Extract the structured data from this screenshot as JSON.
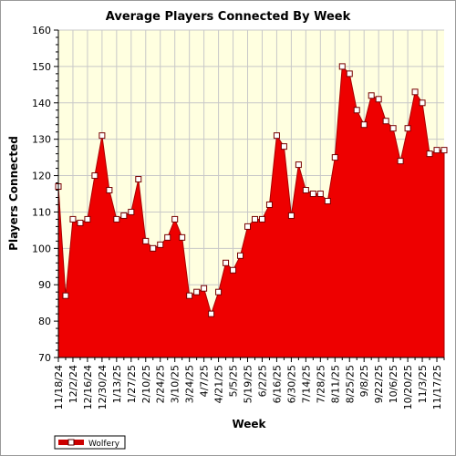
{
  "chart_data": {
    "type": "area",
    "title": "Average Players Connected By Week",
    "xlabel": "Week",
    "ylabel": "Players Connected",
    "ylim": [
      70,
      160
    ],
    "y_ticks": [
      70,
      80,
      90,
      100,
      110,
      120,
      130,
      140,
      150,
      160
    ],
    "grid": true,
    "legend_position": "bottom-left",
    "colors": {
      "area": "#ee0000",
      "plot_background": "#ffffe0",
      "grid": "#c8c8c8"
    },
    "x_tick_labels": [
      "11/18/24",
      "12/2/24",
      "12/16/24",
      "12/30/24",
      "1/13/25",
      "1/27/25",
      "2/10/25",
      "2/24/25",
      "3/10/25",
      "3/24/25",
      "4/7/25",
      "4/21/25",
      "5/5/25",
      "5/19/25",
      "6/2/25",
      "6/16/25",
      "6/30/25",
      "7/14/25",
      "7/28/25",
      "8/11/25",
      "8/25/25",
      "9/8/25",
      "9/22/25",
      "10/6/25",
      "10/20/25",
      "11/3/25",
      "11/17/25"
    ],
    "series": [
      {
        "name": "Wolfery",
        "x": [
          "11/18/24",
          "11/25/24",
          "12/2/24",
          "12/9/24",
          "12/16/24",
          "12/23/24",
          "12/30/24",
          "1/6/25",
          "1/13/25",
          "1/20/25",
          "1/27/25",
          "2/3/25",
          "2/10/25",
          "2/17/25",
          "2/24/25",
          "3/3/25",
          "3/10/25",
          "3/17/25",
          "3/24/25",
          "3/31/25",
          "4/7/25",
          "4/14/25",
          "4/21/25",
          "4/28/25",
          "5/5/25",
          "5/12/25",
          "5/19/25",
          "5/26/25",
          "6/2/25",
          "6/9/25",
          "6/16/25",
          "6/23/25",
          "6/30/25",
          "7/7/25",
          "7/14/25",
          "7/21/25",
          "7/28/25",
          "8/4/25",
          "8/11/25",
          "8/18/25",
          "8/25/25",
          "9/1/25",
          "9/8/25",
          "9/15/25",
          "9/22/25",
          "9/29/25",
          "10/6/25",
          "10/13/25",
          "10/20/25",
          "10/27/25",
          "11/3/25",
          "11/10/25",
          "11/17/25",
          "11/24/25"
        ],
        "values": [
          117,
          87,
          108,
          107,
          108,
          120,
          131,
          116,
          108,
          109,
          110,
          119,
          102,
          100,
          101,
          103,
          108,
          103,
          87,
          88,
          89,
          82,
          88,
          96,
          94,
          98,
          106,
          108,
          108,
          112,
          131,
          128,
          109,
          123,
          116,
          115,
          115,
          113,
          125,
          150,
          148,
          138,
          134,
          142,
          141,
          135,
          133,
          124,
          133,
          143,
          140,
          126,
          127,
          127
        ]
      }
    ]
  }
}
